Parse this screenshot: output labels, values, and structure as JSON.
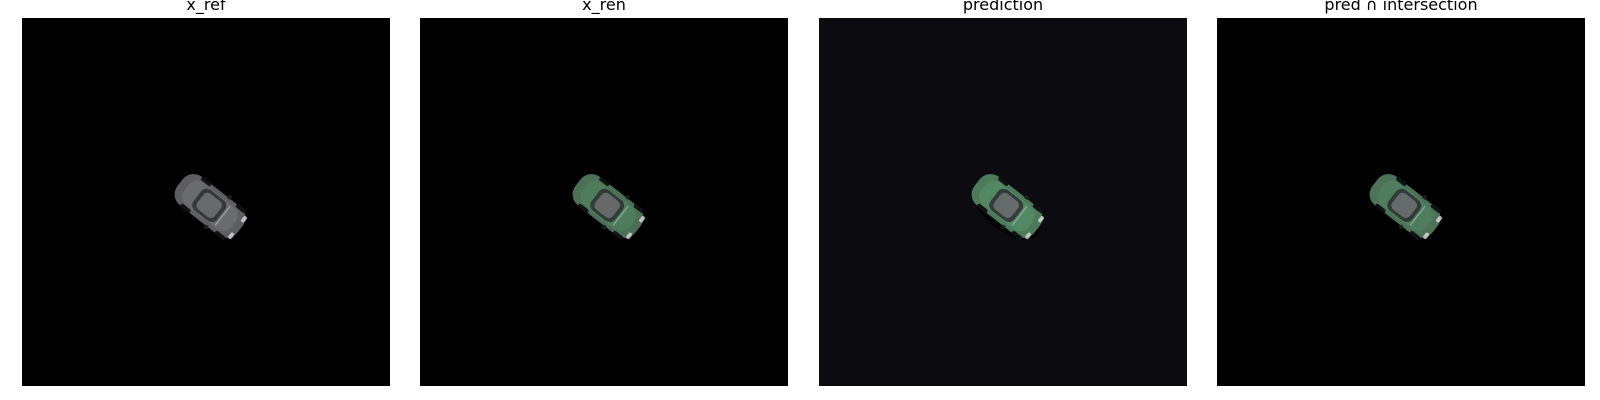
{
  "figure": {
    "panels": [
      {
        "title": "x_ref",
        "background": "#000000",
        "car_body_color": "#5c5e60",
        "car_tint": "#7a7c7e"
      },
      {
        "title": "x_ren",
        "background": "#000000",
        "car_body_color": "#4d6f55",
        "car_tint": "#4f8f63"
      },
      {
        "title": "prediction",
        "background": "#0b0b10",
        "car_body_color": "#4e7a5c",
        "car_tint": "#5c9a72"
      },
      {
        "title": "pred ∩ intersection",
        "background": "#000000",
        "car_body_color": "#4d7258",
        "car_tint": "#4f8f63"
      }
    ]
  }
}
